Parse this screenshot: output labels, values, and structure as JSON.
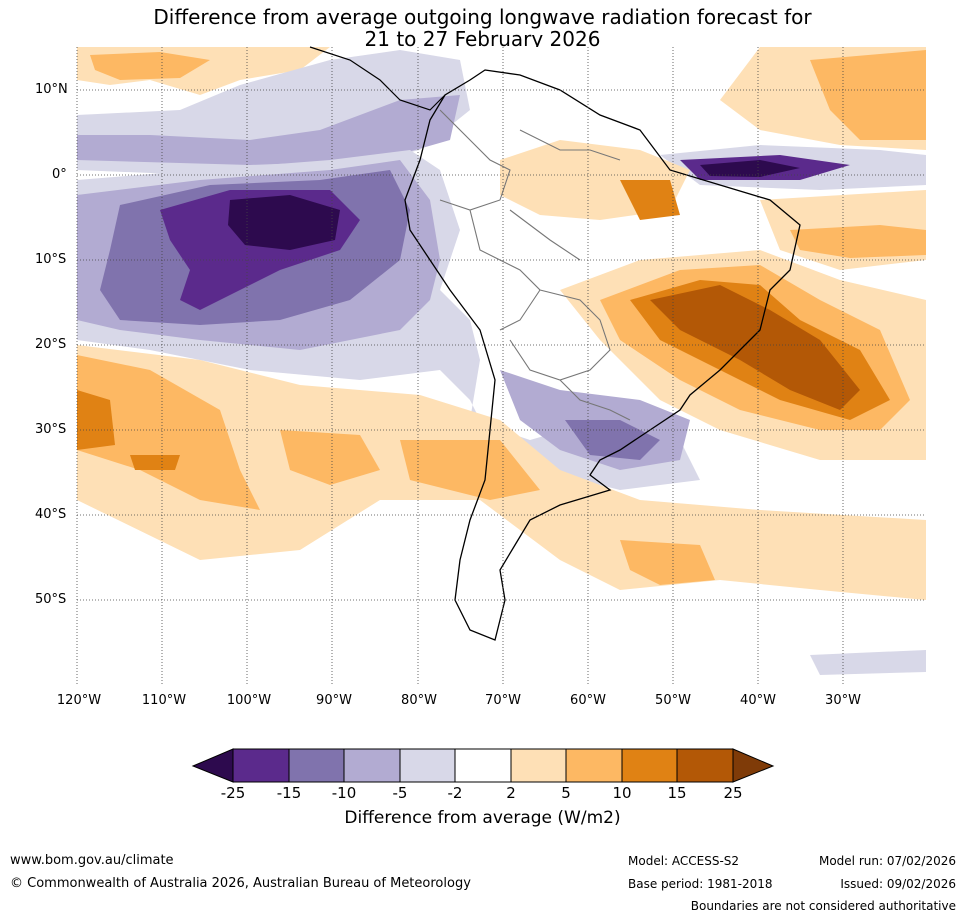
{
  "title": {
    "line1": "Difference from average outgoing longwave radiation forecast for",
    "line2": "21 to 27 February 2026"
  },
  "map": {
    "lat_labels": [
      "10°N",
      "0°",
      "10°S",
      "20°S",
      "30°S",
      "40°S",
      "50°S"
    ],
    "lon_labels": [
      "120°W",
      "110°W",
      "100°W",
      "90°W",
      "80°W",
      "70°W",
      "60°W",
      "50°W",
      "40°W",
      "30°W"
    ]
  },
  "colorbar": {
    "ticks": [
      "-25",
      "-15",
      "-10",
      "-5",
      "-2",
      "2",
      "5",
      "10",
      "15",
      "25"
    ],
    "colors": {
      "below_min": "#2d0a4e",
      "n25_n15": "#5b2a8c",
      "n15_n10": "#8073ad",
      "n10_n5": "#b2abd2",
      "n5_n2": "#d8d8e8",
      "n2_2": "#ffffff",
      "p2_5": "#fee0b6",
      "p5_10": "#fdb863",
      "p10_15": "#e08214",
      "p15_25": "#b35806",
      "above_max": "#7f3b08"
    },
    "label": "Difference from average (W/m2)"
  },
  "footer": {
    "url": "www.bom.gov.au/climate",
    "copyright": "© Commonwealth of Australia 2026, Australian Bureau of Meteorology",
    "model": "Model: ACCESS-S2",
    "base_period": "Base period: 1981-2018",
    "model_run": "Model run: 07/02/2026",
    "issued": "Issued: 09/02/2026",
    "disclaimer": "Boundaries are not considered authoritative"
  }
}
